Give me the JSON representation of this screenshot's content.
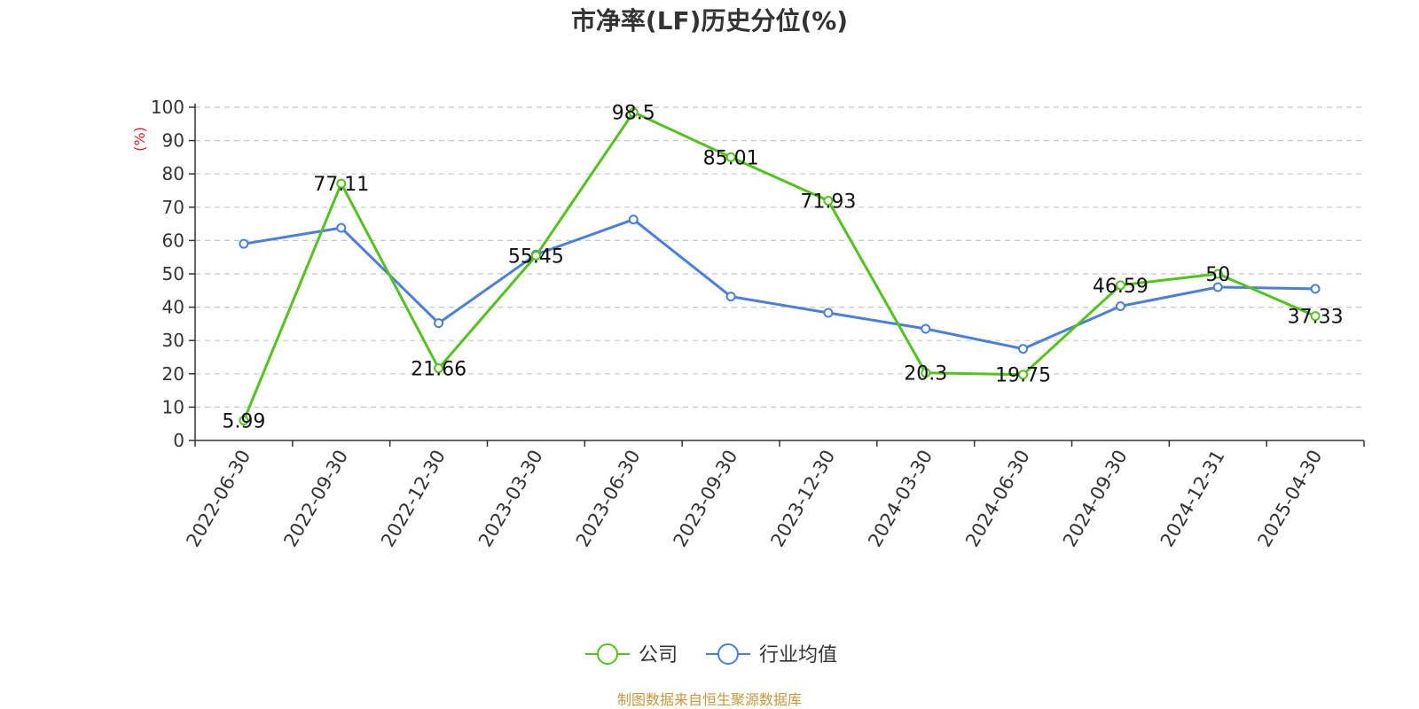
{
  "chart_data": {
    "type": "line",
    "title": "市净率(LF)历史分位(%)",
    "ylabel": "(%)",
    "ylim": [
      0,
      100
    ],
    "yticks": [
      0,
      10,
      20,
      30,
      40,
      50,
      60,
      70,
      80,
      90,
      100
    ],
    "grid": true,
    "legend_position": "bottom",
    "x": [
      "2022-06-30",
      "2022-09-30",
      "2022-12-30",
      "2023-03-30",
      "2023-06-30",
      "2023-09-30",
      "2023-12-30",
      "2024-03-30",
      "2024-06-30",
      "2024-09-30",
      "2024-12-31",
      "2025-04-30"
    ],
    "series": [
      {
        "name": "公司",
        "color": "#52c41a",
        "values": [
          5.99,
          77.11,
          21.66,
          55.45,
          98.5,
          85.01,
          71.93,
          20.3,
          19.75,
          46.59,
          50,
          37.33
        ],
        "data_labels": [
          "5.99",
          "77.11",
          "21.66",
          "55.45",
          "98.5",
          "85.01",
          "71.93",
          "20.3",
          "19.75",
          "46.59",
          "50",
          "37.33"
        ]
      },
      {
        "name": "行业均值",
        "color": "#4a7fdc",
        "values": [
          59,
          63.8,
          35.2,
          55.8,
          66.3,
          43.2,
          38.3,
          33.5,
          27.5,
          40.3,
          46,
          45.5
        ]
      }
    ],
    "source": "制图数据来自恒生聚源数据库",
    "source_color": "#c8963e",
    "ylabel_color": "#e02020"
  }
}
